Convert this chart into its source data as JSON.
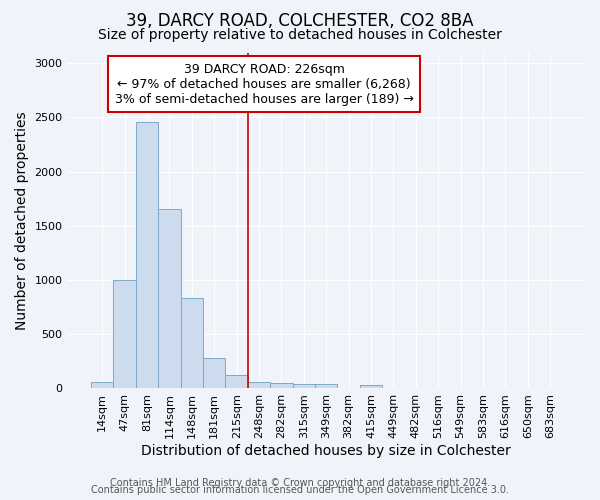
{
  "title": "39, DARCY ROAD, COLCHESTER, CO2 8BA",
  "subtitle": "Size of property relative to detached houses in Colchester",
  "xlabel": "Distribution of detached houses by size in Colchester",
  "ylabel": "Number of detached properties",
  "categories": [
    "14sqm",
    "47sqm",
    "81sqm",
    "114sqm",
    "148sqm",
    "181sqm",
    "215sqm",
    "248sqm",
    "282sqm",
    "315sqm",
    "349sqm",
    "382sqm",
    "415sqm",
    "449sqm",
    "482sqm",
    "516sqm",
    "549sqm",
    "583sqm",
    "616sqm",
    "650sqm",
    "683sqm"
  ],
  "values": [
    55,
    1000,
    2460,
    1650,
    830,
    275,
    120,
    55,
    50,
    40,
    35,
    0,
    30,
    0,
    0,
    0,
    0,
    0,
    0,
    0,
    0
  ],
  "bar_color": "#ccdcee",
  "bar_edge_color": "#7aaac8",
  "vline_x": 6.5,
  "vline_color": "#cc0000",
  "annotation_line1": "39 DARCY ROAD: 226sqm",
  "annotation_line2": "← 97% of detached houses are smaller (6,268)",
  "annotation_line3": "3% of semi-detached houses are larger (189) →",
  "annotation_box_color": "#ffffff",
  "annotation_box_edge_color": "#cc0000",
  "ylim": [
    0,
    3100
  ],
  "yticks": [
    0,
    500,
    1000,
    1500,
    2000,
    2500,
    3000
  ],
  "footer1": "Contains HM Land Registry data © Crown copyright and database right 2024.",
  "footer2": "Contains public sector information licensed under the Open Government Licence 3.0.",
  "fig_bg_color": "#f0f4fa",
  "plot_bg_color": "#f0f4fa",
  "title_fontsize": 12,
  "subtitle_fontsize": 10,
  "axis_label_fontsize": 10,
  "tick_fontsize": 8,
  "footer_fontsize": 7
}
